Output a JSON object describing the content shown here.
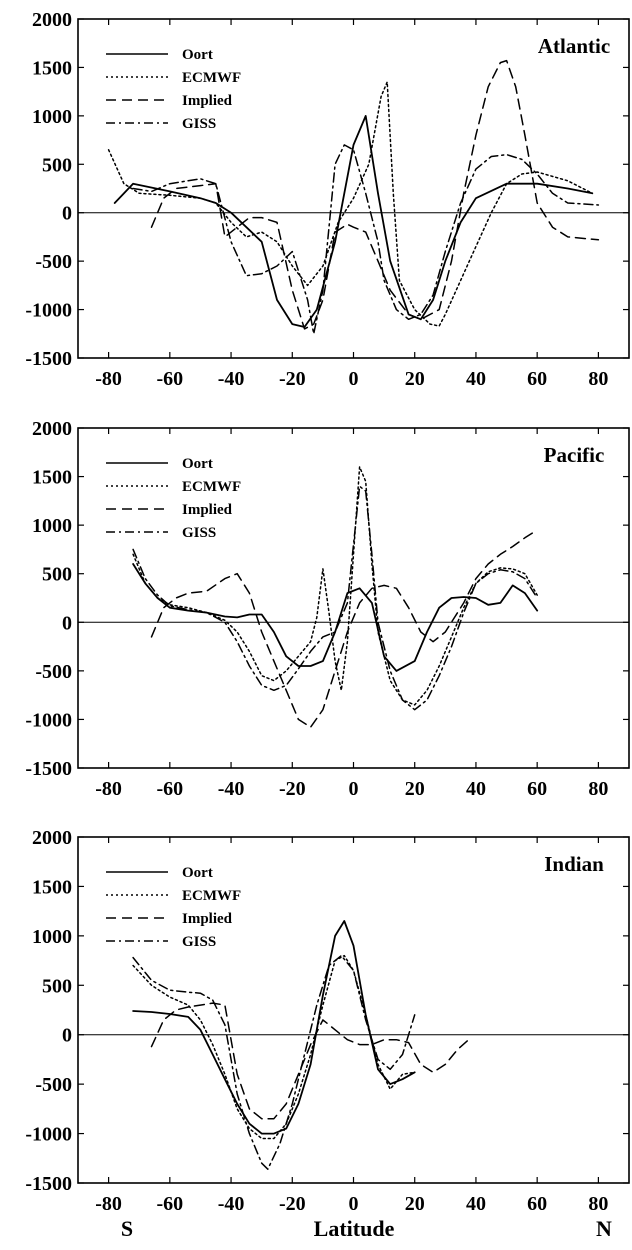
{
  "figure": {
    "xlabel": "Latitude",
    "south_label": "S",
    "north_label": "N"
  },
  "legend_labels": [
    "Oort",
    "ECMWF",
    "Implied",
    "GISS"
  ],
  "styles": {
    "line_color": "#000000",
    "Oort": "solid",
    "ECMWF": "dotted",
    "Implied": "dashed",
    "GISS": "dash-dot"
  },
  "chart_data": [
    {
      "type": "line",
      "title": "Atlantic",
      "xlim": [
        -90,
        90
      ],
      "ylim": [
        -1500,
        2000
      ],
      "xticks": [
        -80,
        -60,
        -40,
        -20,
        0,
        20,
        40,
        60,
        80
      ],
      "yticks": [
        2000,
        1500,
        1000,
        500,
        0,
        -500,
        -1000,
        -1500
      ],
      "zero_line": true,
      "series": [
        {
          "name": "Oort",
          "x": [
            -78,
            -72,
            -60,
            -50,
            -45,
            -40,
            -30,
            -25,
            -20,
            -16,
            -12,
            -6,
            0,
            4,
            8,
            12,
            18,
            22,
            26,
            30,
            35,
            40,
            50,
            60,
            70,
            78
          ],
          "y": [
            100,
            300,
            220,
            150,
            100,
            0,
            -300,
            -900,
            -1150,
            -1180,
            -1000,
            -300,
            700,
            1000,
            200,
            -500,
            -1050,
            -1100,
            -900,
            -500,
            -100,
            150,
            300,
            300,
            250,
            200
          ]
        },
        {
          "name": "ECMWF",
          "x": [
            -80,
            -75,
            -70,
            -60,
            -50,
            -45,
            -40,
            -35,
            -30,
            -25,
            -20,
            -15,
            -10,
            -5,
            0,
            5,
            9,
            11,
            13,
            15,
            20,
            25,
            28,
            30,
            35,
            40,
            45,
            50,
            55,
            60,
            70,
            78
          ],
          "y": [
            650,
            300,
            200,
            180,
            150,
            100,
            -100,
            -250,
            -200,
            -300,
            -550,
            -750,
            -550,
            -100,
            150,
            500,
            1200,
            1350,
            200,
            -700,
            -1000,
            -1150,
            -1170,
            -1050,
            -700,
            -350,
            0,
            300,
            400,
            420,
            330,
            200
          ]
        },
        {
          "name": "Implied",
          "x": [
            -66,
            -62,
            -58,
            -50,
            -45,
            -42,
            -38,
            -34,
            -30,
            -25,
            -20,
            -16,
            -13,
            -10,
            -6,
            -2,
            0,
            4,
            8,
            12,
            18,
            22,
            28,
            32,
            36,
            40,
            44,
            48,
            50,
            53,
            56,
            60,
            65,
            70,
            80
          ],
          "y": [
            -150,
            150,
            250,
            280,
            300,
            -250,
            -150,
            -50,
            -50,
            -100,
            -800,
            -1200,
            -1150,
            -900,
            -200,
            -120,
            -150,
            -200,
            -500,
            -800,
            -1050,
            -1100,
            -1000,
            -500,
            200,
            800,
            1300,
            1550,
            1570,
            1300,
            800,
            100,
            -150,
            -250,
            -280
          ]
        },
        {
          "name": "GISS",
          "x": [
            -72,
            -66,
            -60,
            -50,
            -45,
            -40,
            -35,
            -30,
            -25,
            -20,
            -15,
            -13,
            -10,
            -6,
            -3,
            0,
            4,
            8,
            10,
            14,
            18,
            22,
            26,
            30,
            35,
            40,
            45,
            50,
            55,
            60,
            65,
            70,
            80
          ],
          "y": [
            250,
            220,
            300,
            350,
            300,
            -300,
            -650,
            -630,
            -550,
            -400,
            -900,
            -1250,
            -800,
            500,
            700,
            650,
            200,
            -300,
            -700,
            -1000,
            -1100,
            -1050,
            -850,
            -400,
            100,
            450,
            580,
            600,
            550,
            400,
            200,
            100,
            80
          ]
        }
      ]
    },
    {
      "type": "line",
      "title": "Pacific",
      "xlim": [
        -90,
        90
      ],
      "ylim": [
        -1500,
        2000
      ],
      "xticks": [
        -80,
        -60,
        -40,
        -20,
        0,
        20,
        40,
        60,
        80
      ],
      "yticks": [
        2000,
        1500,
        1000,
        500,
        0,
        -500,
        -1000,
        -1500
      ],
      "zero_line": true,
      "series": [
        {
          "name": "Oort",
          "x": [
            -72,
            -68,
            -64,
            -60,
            -54,
            -48,
            -42,
            -38,
            -34,
            -30,
            -26,
            -22,
            -18,
            -14,
            -10,
            -6,
            -2,
            2,
            6,
            10,
            14,
            20,
            24,
            28,
            32,
            36,
            40,
            44,
            48,
            52,
            56,
            60
          ],
          "y": [
            600,
            400,
            250,
            150,
            120,
            100,
            60,
            50,
            80,
            80,
            -100,
            -350,
            -450,
            -450,
            -400,
            -100,
            300,
            350,
            200,
            -350,
            -500,
            -400,
            -100,
            150,
            250,
            260,
            250,
            180,
            200,
            380,
            300,
            120
          ]
        },
        {
          "name": "ECMWF",
          "x": [
            -72,
            -68,
            -64,
            -60,
            -54,
            -48,
            -42,
            -38,
            -34,
            -30,
            -26,
            -22,
            -18,
            -14,
            -12,
            -10,
            -8,
            -6,
            -4,
            -2,
            0,
            2,
            4,
            6,
            8,
            12,
            16,
            20,
            24,
            28,
            32,
            36,
            40,
            44,
            48,
            52,
            56,
            60
          ],
          "y": [
            700,
            400,
            250,
            180,
            150,
            100,
            20,
            -100,
            -300,
            -550,
            -600,
            -500,
            -350,
            -200,
            50,
            550,
            100,
            -400,
            -700,
            -200,
            700,
            1600,
            1450,
            600,
            -100,
            -600,
            -800,
            -850,
            -700,
            -450,
            -150,
            150,
            400,
            520,
            560,
            550,
            500,
            280
          ]
        },
        {
          "name": "Implied",
          "x": [
            -66,
            -62,
            -58,
            -54,
            -48,
            -42,
            -38,
            -34,
            -30,
            -26,
            -22,
            -18,
            -14,
            -10,
            -6,
            -2,
            2,
            6,
            10,
            14,
            18,
            22,
            26,
            30,
            36,
            40,
            44,
            48,
            52,
            56,
            60
          ],
          "y": [
            -150,
            150,
            250,
            300,
            320,
            450,
            500,
            300,
            -100,
            -400,
            -700,
            -1000,
            -1080,
            -900,
            -500,
            -100,
            200,
            350,
            380,
            350,
            150,
            -100,
            -200,
            -100,
            200,
            450,
            600,
            700,
            780,
            870,
            950
          ]
        },
        {
          "name": "GISS",
          "x": [
            -72,
            -68,
            -64,
            -60,
            -54,
            -48,
            -42,
            -38,
            -34,
            -30,
            -26,
            -22,
            -18,
            -14,
            -10,
            -6,
            -2,
            0,
            2,
            4,
            6,
            8,
            12,
            16,
            20,
            24,
            28,
            32,
            36,
            40,
            44,
            48,
            52,
            56,
            60
          ],
          "y": [
            750,
            450,
            280,
            170,
            130,
            100,
            0,
            -200,
            -450,
            -650,
            -700,
            -650,
            -480,
            -300,
            -150,
            -100,
            200,
            800,
            1400,
            1350,
            700,
            0,
            -500,
            -800,
            -900,
            -800,
            -550,
            -250,
            100,
            400,
            500,
            540,
            520,
            450,
            250
          ]
        }
      ]
    },
    {
      "type": "line",
      "title": "Indian",
      "xlim": [
        -90,
        90
      ],
      "ylim": [
        -1500,
        2000
      ],
      "xticks": [
        -80,
        -60,
        -40,
        -20,
        0,
        20,
        40,
        60,
        80
      ],
      "yticks": [
        2000,
        1500,
        1000,
        500,
        0,
        -500,
        -1000,
        -1500
      ],
      "zero_line": true,
      "series": [
        {
          "name": "Oort",
          "x": [
            -72,
            -66,
            -60,
            -54,
            -50,
            -46,
            -42,
            -38,
            -34,
            -30,
            -26,
            -22,
            -18,
            -14,
            -10,
            -6,
            -3,
            0,
            4,
            8,
            12,
            16,
            20
          ],
          "y": [
            240,
            230,
            210,
            180,
            50,
            -200,
            -450,
            -700,
            -900,
            -1000,
            -1000,
            -950,
            -700,
            -300,
            400,
            1000,
            1150,
            900,
            200,
            -350,
            -500,
            -450,
            -380
          ]
        },
        {
          "name": "ECMWF",
          "x": [
            -72,
            -66,
            -60,
            -54,
            -50,
            -46,
            -42,
            -38,
            -34,
            -30,
            -26,
            -22,
            -18,
            -14,
            -10,
            -6,
            -3,
            0,
            4,
            8,
            12,
            16,
            20
          ],
          "y": [
            700,
            500,
            380,
            300,
            150,
            -100,
            -400,
            -750,
            -950,
            -1050,
            -1050,
            -900,
            -600,
            -200,
            300,
            750,
            800,
            650,
            200,
            -300,
            -550,
            -400,
            -380
          ]
        },
        {
          "name": "Implied",
          "x": [
            -66,
            -62,
            -58,
            -54,
            -50,
            -46,
            -42,
            -38,
            -34,
            -30,
            -26,
            -22,
            -18,
            -14,
            -10,
            -6,
            -2,
            2,
            6,
            10,
            14,
            18,
            22,
            26,
            30,
            34,
            38
          ],
          "y": [
            -120,
            150,
            250,
            280,
            300,
            320,
            300,
            -400,
            -750,
            -850,
            -850,
            -700,
            -400,
            -100,
            150,
            50,
            -50,
            -100,
            -100,
            -50,
            -50,
            -80,
            -300,
            -380,
            -300,
            -150,
            -40
          ]
        },
        {
          "name": "GISS",
          "x": [
            -72,
            -66,
            -60,
            -54,
            -50,
            -46,
            -42,
            -38,
            -34,
            -30,
            -28,
            -24,
            -20,
            -16,
            -12,
            -8,
            -4,
            0,
            4,
            8,
            12,
            16,
            18,
            20
          ],
          "y": [
            780,
            550,
            450,
            430,
            420,
            350,
            100,
            -600,
            -1000,
            -1300,
            -1360,
            -1100,
            -700,
            -200,
            300,
            700,
            800,
            650,
            150,
            -250,
            -350,
            -200,
            0,
            200
          ]
        }
      ]
    }
  ]
}
